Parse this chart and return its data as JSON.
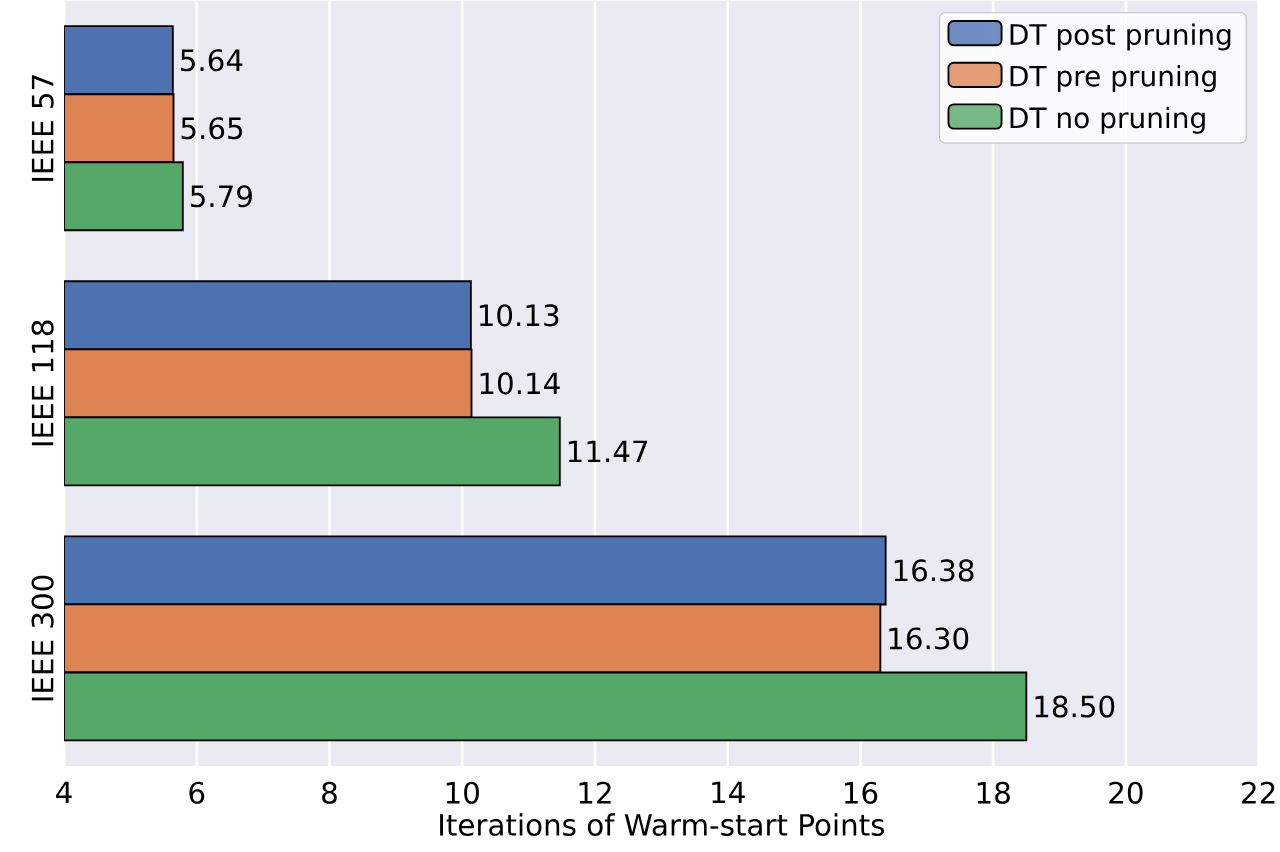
{
  "chart_data": {
    "type": "bar",
    "orientation": "horizontal",
    "xlabel": "Iterations of Warm-start Points",
    "categories": [
      "IEEE 57",
      "IEEE 118",
      "IEEE 300"
    ],
    "series": [
      {
        "name": "DT post pruning",
        "color": "#4c72b0",
        "values": [
          5.64,
          10.13,
          16.38
        ],
        "value_labels": [
          "5.64",
          "10.13",
          "16.38"
        ]
      },
      {
        "name": "DT pre pruning",
        "color": "#dd8452",
        "values": [
          5.65,
          10.14,
          16.3
        ],
        "value_labels": [
          "5.65",
          "10.14",
          "16.30"
        ]
      },
      {
        "name": "DT no pruning",
        "color": "#55a868",
        "values": [
          5.79,
          11.47,
          18.5
        ],
        "value_labels": [
          "5.79",
          "11.47",
          "18.50"
        ]
      }
    ],
    "xlim": [
      4,
      22
    ],
    "xticks": [
      4,
      6,
      8,
      10,
      12,
      14,
      16,
      18,
      20,
      22
    ],
    "grid": "x",
    "legend": "top right"
  }
}
